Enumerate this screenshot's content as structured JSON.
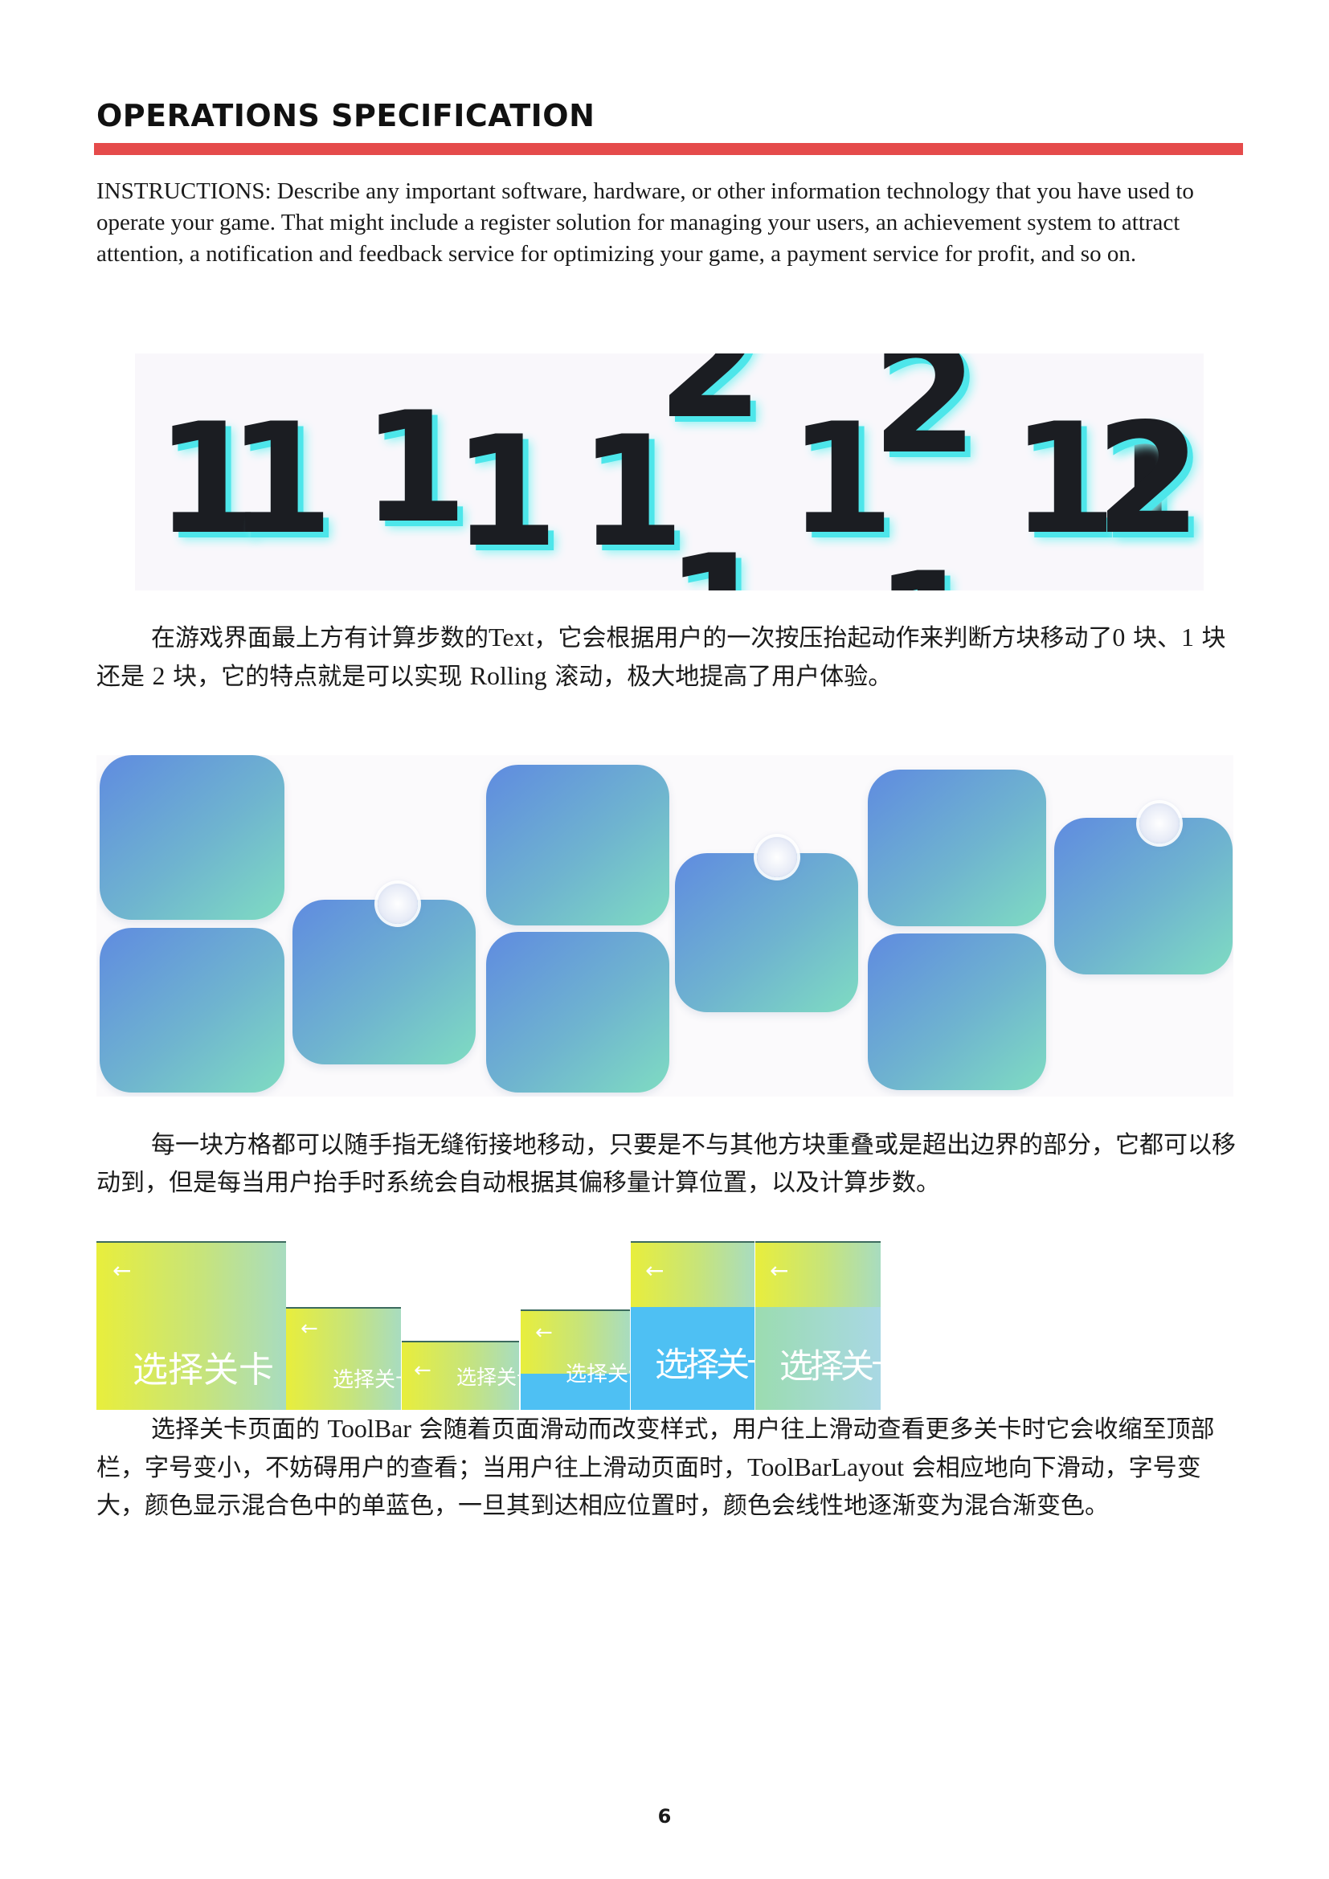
{
  "heading": "OPERATIONS SPECIFICATION",
  "instructions": "INSTRUCTIONS: Describe any important software, hardware, or other information technology that you have used to operate your game. That might include a register solution for managing your users, an achievement system to attract attention, a notification and feedback service for optimizing your game, a payment service for profit, and so on.",
  "figure_rolling": {
    "digits": [
      "1",
      "1",
      "1",
      "1",
      "1",
      "1",
      "2",
      "1",
      "1",
      "2",
      "1",
      "1",
      "2"
    ]
  },
  "para1": {
    "a": "在游戏界面最上方有计算步数的",
    "b": "Text",
    "c": "，它会根据用户的一次按压抬起动作来判断方块移动了",
    "d": "0",
    "e": "块、",
    "f": "1",
    "g": "块还是",
    "h": "2",
    "i": "块，它的特点就是可以实现",
    "j": "Rolling",
    "k": "滚动，极大地提高了用户体验。"
  },
  "para2": "每一块方格都可以随手指无缝衔接地移动，只要是不与其他方块重叠或是超出边界的部分，它都可以移动到，但是每当用户抬手时系统会自动根据其偏移量计算位置，以及计算步数。",
  "toolbars": {
    "arrow": "←",
    "title": "选择关卡"
  },
  "para3": {
    "a": "选择关卡页面的",
    "b": "ToolBar",
    "c": "会随着页面滑动而改变样式，用户往上滑动查看更多关卡时它会收缩至顶部栏，字号变小，不妨碍用户的查看；当用户往上滑动页面时，",
    "d": "ToolBarLayout",
    "e": "会相应地向下滑动，字号变大，颜色显示混合色中的单蓝色，一旦其到达相应位置时，颜色会线性地逐渐变为混合渐变色。"
  },
  "page_number": "6",
  "colors": {
    "accent_rule": "#e54b4b",
    "digit_shadow": "#4de6ea",
    "block_gradient_start": "#5f8be0",
    "block_gradient_end": "#7fdcc2",
    "toolbar_yellow": "#e8ee3c",
    "toolbar_blue": "#4ec0f3"
  }
}
